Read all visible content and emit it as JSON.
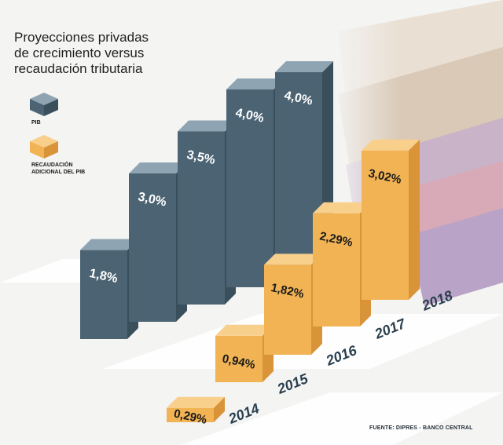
{
  "chart_data": {
    "type": "bar",
    "title_lines": [
      "Proyecciones privadas",
      "de crecimiento versus",
      "recaudación tributaria"
    ],
    "categories": [
      "2014",
      "2015",
      "2016",
      "2017",
      "2018"
    ],
    "series": [
      {
        "name": "PIB",
        "values": [
          1.8,
          3.0,
          3.5,
          4.0,
          4.0
        ],
        "labels": [
          "1,8%",
          "3,0%",
          "3,5%",
          "4,0%",
          "4,0%"
        ],
        "color": "#4b6373"
      },
      {
        "name": "RECAUDACIÓN ADICIONAL DEL PIB",
        "name_lines": [
          "RECAUDACIÓN",
          "ADICIONAL DEL PIB"
        ],
        "values": [
          0.29,
          0.94,
          1.82,
          2.29,
          3.02
        ],
        "labels": [
          "0,29%",
          "0,94%",
          "1,82%",
          "2,29%",
          "3,02%"
        ],
        "color": "#f1b353"
      }
    ],
    "source": "FUENTE: DIPRES - BANCO CENTRAL"
  },
  "colors": {
    "pib_front": "#4b6373",
    "pib_side": "#3a4f5c",
    "pib_top": "#8ea4b2",
    "rec_front": "#f1b353",
    "rec_side": "#d9943a",
    "rec_top": "#f8d08c",
    "year_text": "#2a3f4e"
  }
}
